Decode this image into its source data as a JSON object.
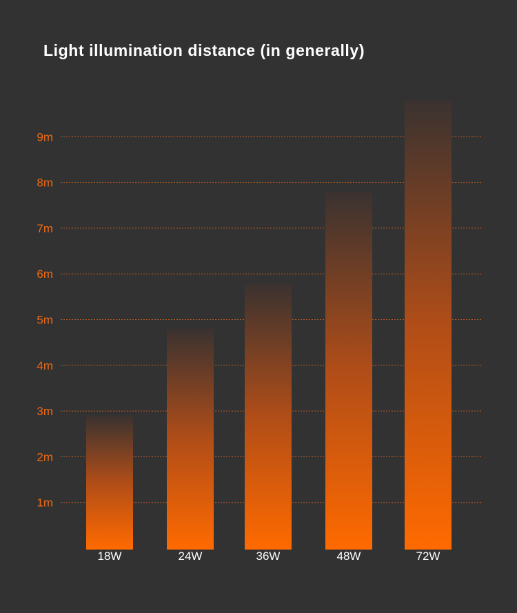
{
  "chart_data": {
    "type": "bar",
    "title": "Light illumination distance (in generally)",
    "categories": [
      "18W",
      "24W",
      "36W",
      "48W",
      "72W"
    ],
    "values": [
      2.9,
      4.8,
      5.8,
      7.8,
      9.8
    ],
    "y_ticks": [
      "1m",
      "2m",
      "3m",
      "4m",
      "5m",
      "6m",
      "7m",
      "8m",
      "9m"
    ],
    "ylim": [
      0,
      10
    ],
    "xlabel": "",
    "ylabel": "",
    "grid": true,
    "legend": "none",
    "colors": {
      "background": "#323232",
      "bar_bottom": "#ff6a00",
      "bar_top_fade": "#323232",
      "tick_text": "#f06a12",
      "grid_line": "#e0621a",
      "category_text": "#ffffff"
    }
  }
}
